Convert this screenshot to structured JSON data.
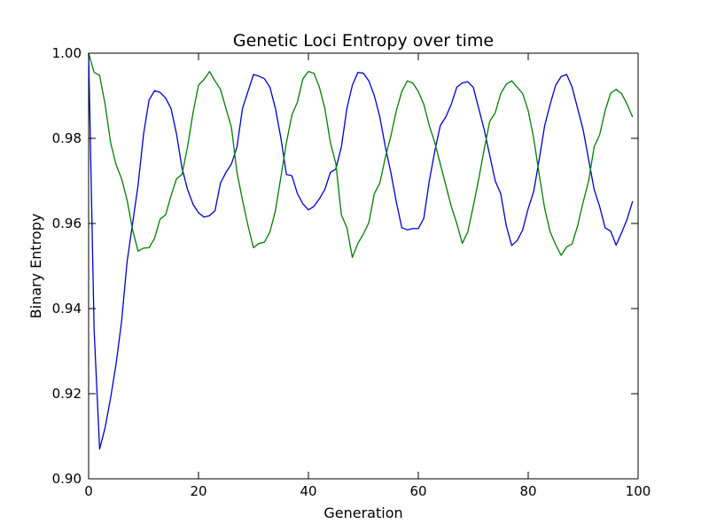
{
  "chart_data": {
    "type": "line",
    "title": "Genetic Loci Entropy over time",
    "xlabel": "Generation",
    "ylabel": "Binary Entropy",
    "xlim": [
      0,
      100
    ],
    "ylim": [
      0.9,
      1.0
    ],
    "xticks": [
      0,
      20,
      40,
      60,
      80,
      100
    ],
    "xtick_labels": [
      "0",
      "20",
      "40",
      "60",
      "80",
      "100"
    ],
    "yticks": [
      0.9,
      0.92,
      0.94,
      0.96,
      0.98,
      1.0
    ],
    "ytick_labels": [
      "0.90",
      "0.92",
      "0.94",
      "0.96",
      "0.98",
      "1.00"
    ],
    "grid": false,
    "legend": "none",
    "series": [
      {
        "color": "#0000cc",
        "x": [
          0,
          1,
          2,
          3,
          4,
          5,
          6,
          7,
          8,
          9,
          10,
          11,
          12,
          13,
          14,
          15,
          16,
          17,
          18,
          19,
          20,
          21,
          22,
          23,
          24,
          25,
          26,
          27,
          28,
          29,
          30,
          31,
          32,
          33,
          34,
          35,
          36,
          37,
          38,
          39,
          40,
          41,
          42,
          43,
          44,
          45,
          46,
          47,
          48,
          49,
          50,
          51,
          52,
          53,
          54,
          55,
          56,
          57,
          58,
          59,
          60,
          61,
          62,
          63,
          64,
          65,
          66,
          67,
          68,
          69,
          70,
          71,
          72,
          73,
          74,
          75,
          76,
          77,
          78,
          79,
          80,
          81,
          82,
          83,
          84,
          85,
          86,
          87,
          88,
          89,
          90,
          91,
          92,
          93,
          94,
          95,
          96,
          97,
          98,
          99
        ],
        "y": [
          1.0,
          0.935,
          0.907,
          0.912,
          0.919,
          0.927,
          0.937,
          0.951,
          0.96,
          0.969,
          0.981,
          0.989,
          0.9912,
          0.9908,
          0.9895,
          0.987,
          0.981,
          0.973,
          0.968,
          0.9645,
          0.9625,
          0.9615,
          0.9618,
          0.963,
          0.9695,
          0.972,
          0.974,
          0.978,
          0.987,
          0.991,
          0.995,
          0.9946,
          0.994,
          0.992,
          0.987,
          0.98,
          0.9715,
          0.9712,
          0.967,
          0.9646,
          0.9632,
          0.964,
          0.9658,
          0.968,
          0.972,
          0.9728,
          0.978,
          0.987,
          0.9925,
          0.9955,
          0.9953,
          0.9935,
          0.99,
          0.985,
          0.978,
          0.972,
          0.965,
          0.959,
          0.9585,
          0.9588,
          0.9588,
          0.9612,
          0.97,
          0.977,
          0.983,
          0.985,
          0.988,
          0.992,
          0.993,
          0.9933,
          0.992,
          0.987,
          0.982,
          0.976,
          0.97,
          0.967,
          0.9595,
          0.9548,
          0.956,
          0.9585,
          0.9635,
          0.9675,
          0.975,
          0.983,
          0.988,
          0.9925,
          0.9945,
          0.995,
          0.992,
          0.987,
          0.982,
          0.975,
          0.968,
          0.964,
          0.959,
          0.9582,
          0.9549,
          0.9578,
          0.961,
          0.9652
        ]
      },
      {
        "color": "#007f00",
        "x": [
          0,
          1,
          2,
          3,
          4,
          5,
          6,
          7,
          8,
          9,
          10,
          11,
          12,
          13,
          14,
          15,
          16,
          17,
          18,
          19,
          20,
          21,
          22,
          23,
          24,
          25,
          26,
          27,
          28,
          29,
          30,
          31,
          32,
          33,
          34,
          35,
          36,
          37,
          38,
          39,
          40,
          41,
          42,
          43,
          44,
          45,
          46,
          47,
          48,
          49,
          50,
          51,
          52,
          53,
          54,
          55,
          56,
          57,
          58,
          59,
          60,
          61,
          62,
          63,
          64,
          65,
          66,
          67,
          68,
          69,
          70,
          71,
          72,
          73,
          74,
          75,
          76,
          77,
          78,
          79,
          80,
          81,
          82,
          83,
          84,
          85,
          86,
          87,
          88,
          89,
          90,
          91,
          92,
          93,
          94,
          95,
          96,
          97,
          98,
          99
        ],
        "y": [
          1.0,
          0.9955,
          0.9948,
          0.988,
          0.979,
          0.9738,
          0.9705,
          0.9655,
          0.9585,
          0.9535,
          0.9542,
          0.9543,
          0.9565,
          0.961,
          0.962,
          0.9665,
          0.9705,
          0.9715,
          0.978,
          0.986,
          0.9925,
          0.9938,
          0.9957,
          0.9935,
          0.9915,
          0.987,
          0.9825,
          0.972,
          0.9655,
          0.9595,
          0.9543,
          0.9553,
          0.9556,
          0.958,
          0.963,
          0.971,
          0.979,
          0.9855,
          0.9885,
          0.994,
          0.9957,
          0.9953,
          0.992,
          0.987,
          0.979,
          0.974,
          0.962,
          0.959,
          0.952,
          0.9553,
          0.9575,
          0.9602,
          0.967,
          0.9695,
          0.9755,
          0.9805,
          0.9865,
          0.991,
          0.9935,
          0.993,
          0.991,
          0.988,
          0.983,
          0.979,
          0.974,
          0.969,
          0.964,
          0.96,
          0.9553,
          0.958,
          0.964,
          0.9705,
          0.9775,
          0.984,
          0.986,
          0.9905,
          0.9927,
          0.9935,
          0.992,
          0.9905,
          0.9865,
          0.98,
          0.9715,
          0.9635,
          0.958,
          0.955,
          0.9525,
          0.9545,
          0.9552,
          0.9595,
          0.965,
          0.97,
          0.978,
          0.9808,
          0.9865,
          0.9906,
          0.9915,
          0.9905,
          0.988,
          0.985
        ]
      }
    ]
  }
}
